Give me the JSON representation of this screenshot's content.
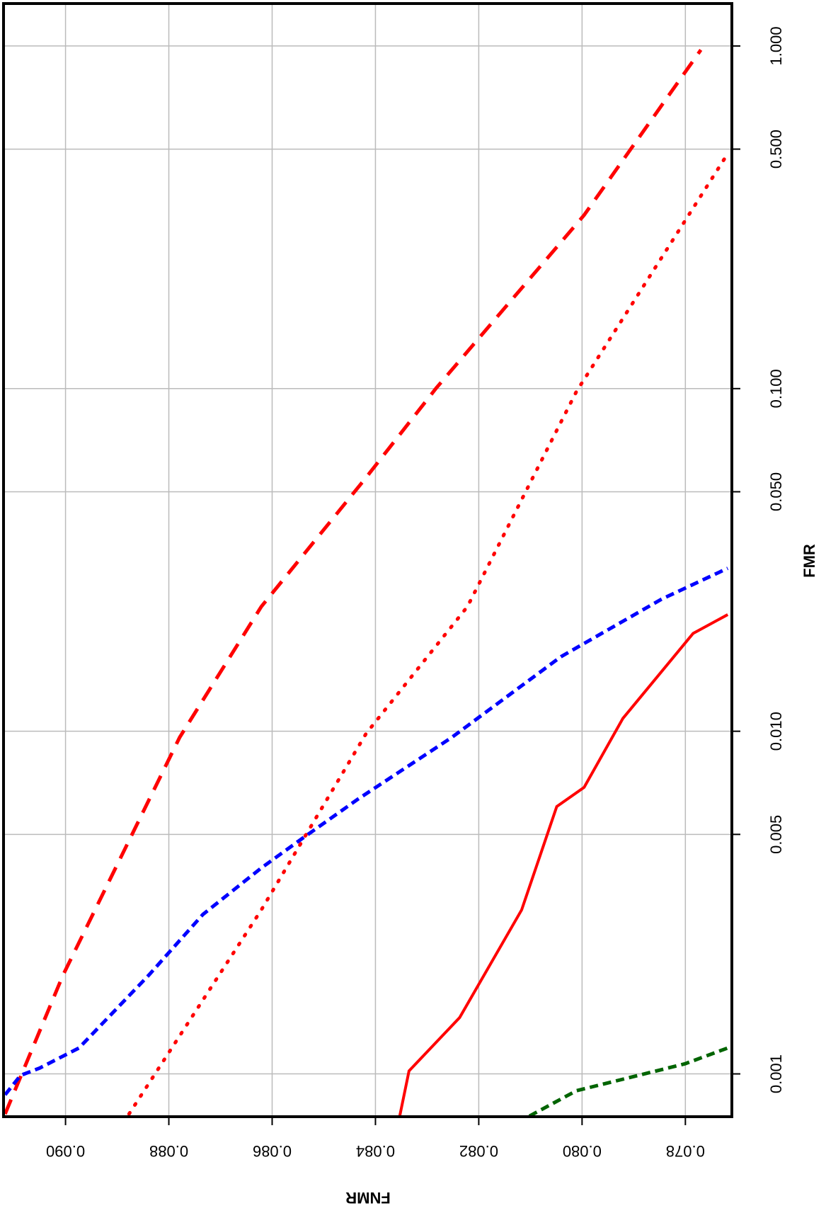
{
  "chart_data": {
    "type": "line",
    "xlabel": "FNMR",
    "ylabel": "FMR",
    "xlim": [
      0.0912,
      0.0771
    ],
    "xticks": [
      0.078,
      {
        "value": 0.08,
        "label": "0.080"
      },
      0.082,
      0.084,
      0.086,
      0.088,
      {
        "value": 0.09,
        "label": "0.090"
      }
    ],
    "ylim": [
      0.00075,
      1.33
    ],
    "ylog": true,
    "yticks": [
      0.001,
      0.005,
      {
        "value": 0.01,
        "label": "0.010"
      },
      {
        "value": 0.05,
        "label": "0.050"
      },
      {
        "value": 0.1,
        "label": "0.100"
      },
      {
        "value": 0.5,
        "label": "0.500"
      },
      {
        "value": 1,
        "label": "1.000"
      }
    ],
    "grid": true,
    "series": [
      {
        "color": "#ff0000",
        "style": "dashed",
        "x": [
          0.09117,
          0.09005,
          0.08779,
          0.08621,
          0.08422,
          0.08282,
          0.07996,
          0.0777
        ],
        "values": [
          0.000764,
          0.00194,
          0.0096,
          0.0231,
          0.0541,
          0.1005,
          0.321,
          0.974
        ]
      },
      {
        "color": "#ff0000",
        "style": "dotted",
        "x": [
          0.08877,
          0.08621,
          0.08418,
          0.08222,
          0.08011,
          0.07718
        ],
        "values": [
          0.000764,
          0.00301,
          0.00985,
          0.0231,
          0.098,
          0.485
        ]
      },
      {
        "color": "#0000ff",
        "style": "dashed-short",
        "x": [
          0.09117,
          0.09087,
          0.0905,
          0.08974,
          0.08839,
          0.08734,
          0.08621,
          0.08538,
          0.08433,
          0.08252,
          0.08041,
          0.07846,
          0.07718
        ],
        "values": [
          0.000869,
          0.00099,
          0.00104,
          0.00119,
          0.00194,
          0.00292,
          0.00399,
          0.00491,
          0.00635,
          0.0096,
          0.0165,
          0.0243,
          0.0299
        ]
      },
      {
        "color": "#ff0000",
        "style": "solid",
        "x": [
          0.08353,
          0.08335,
          0.08237,
          0.08117,
          0.08049,
          0.07996,
          0.07921,
          0.07785,
          0.07718
        ],
        "values": [
          0.000753,
          0.00102,
          0.00146,
          0.00301,
          0.00603,
          0.00686,
          0.0109,
          0.0193,
          0.0219
        ]
      },
      {
        "color": "#006400",
        "style": "dashed-short",
        "x": [
          0.08102,
          0.08011,
          0.07891,
          0.07801,
          0.07718
        ],
        "values": [
          0.000753,
          0.000893,
          0.00099,
          0.00107,
          0.00119
        ]
      }
    ]
  }
}
